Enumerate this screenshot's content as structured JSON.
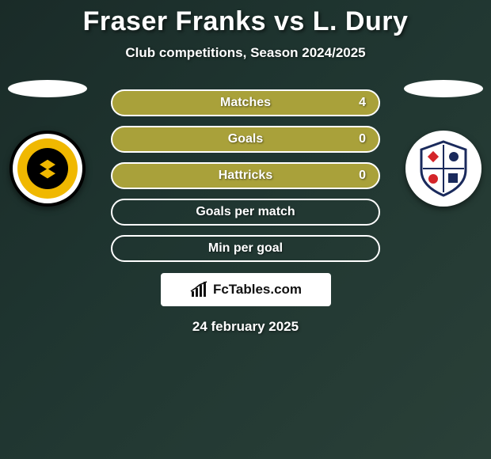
{
  "title": "Fraser Franks vs L. Dury",
  "subtitle": "Club competitions, Season 2024/2025",
  "stats": [
    {
      "label": "Matches",
      "value": "4",
      "filled": true
    },
    {
      "label": "Goals",
      "value": "0",
      "filled": true
    },
    {
      "label": "Hattricks",
      "value": "0",
      "filled": true
    },
    {
      "label": "Goals per match",
      "value": "",
      "filled": false
    },
    {
      "label": "Min per goal",
      "value": "",
      "filled": false
    }
  ],
  "brand": "FcTables.com",
  "date": "24 february 2025",
  "colors": {
    "bar_fill": "#a9a13a",
    "bar_border": "#ffffff",
    "text": "#ffffff",
    "background_start": "#1a2b28",
    "background_end": "#2a4038"
  },
  "players": {
    "left": {
      "club_name": "newport-county-badge"
    },
    "right": {
      "club_name": "barrow-badge"
    }
  }
}
